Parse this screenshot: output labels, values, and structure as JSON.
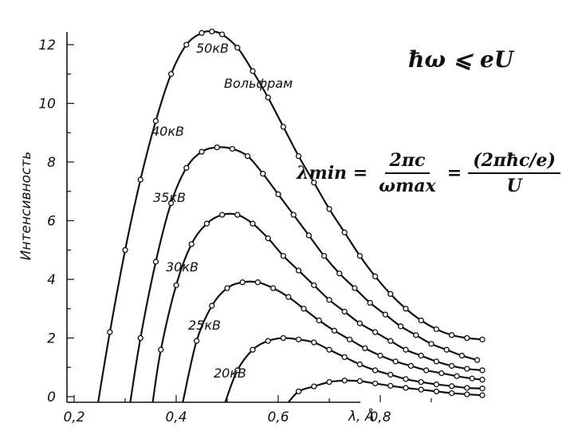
{
  "formulas": {
    "inequality": "ħω ⩽ eU",
    "lambda_min_lhs": "λmin =",
    "frac1_num": "2πc",
    "frac1_den": "ωmax",
    "equals": "=",
    "frac2_num": "(2πħc/e)",
    "frac2_den": "U"
  },
  "chart_data": {
    "type": "line",
    "title": "",
    "xlabel": "λ, Å",
    "ylabel": "Интенсивность",
    "xlim": [
      0.15,
      1.05
    ],
    "ylim": [
      0,
      12.6
    ],
    "x_ticks": [
      "0,2",
      "0,4",
      "0,6",
      "0,8"
    ],
    "x_tick_values": [
      0.2,
      0.4,
      0.6,
      0.8
    ],
    "y_ticks": [
      "0",
      "2",
      "4",
      "6",
      "8",
      "10",
      "12"
    ],
    "y_tick_values": [
      0,
      2,
      4,
      6,
      8,
      10,
      12
    ],
    "annotation": "Вольфрам",
    "grid": false,
    "series": [
      {
        "name": "50кВ",
        "x": [
          0.247,
          0.27,
          0.3,
          0.33,
          0.36,
          0.39,
          0.42,
          0.45,
          0.47,
          0.49,
          0.52,
          0.55,
          0.58,
          0.61,
          0.64,
          0.67,
          0.7,
          0.73,
          0.76,
          0.79,
          0.82,
          0.85,
          0.88,
          0.91,
          0.94,
          0.97,
          1.0
        ],
        "y": [
          0,
          2.2,
          5.0,
          7.4,
          9.4,
          11.0,
          12.0,
          12.4,
          12.45,
          12.35,
          11.9,
          11.1,
          10.2,
          9.2,
          8.2,
          7.3,
          6.4,
          5.6,
          4.8,
          4.1,
          3.5,
          3.0,
          2.6,
          2.3,
          2.1,
          2.0,
          1.95
        ]
      },
      {
        "name": "40кВ",
        "x": [
          0.31,
          0.33,
          0.36,
          0.39,
          0.42,
          0.45,
          0.48,
          0.51,
          0.54,
          0.57,
          0.6,
          0.63,
          0.66,
          0.69,
          0.72,
          0.75,
          0.78,
          0.81,
          0.84,
          0.87,
          0.9,
          0.93,
          0.96,
          0.99
        ],
        "y": [
          0,
          2.0,
          4.6,
          6.6,
          7.8,
          8.35,
          8.5,
          8.45,
          8.2,
          7.6,
          6.9,
          6.2,
          5.5,
          4.8,
          4.2,
          3.7,
          3.2,
          2.8,
          2.4,
          2.1,
          1.8,
          1.6,
          1.4,
          1.25
        ]
      },
      {
        "name": "35кВ",
        "x": [
          0.354,
          0.37,
          0.4,
          0.43,
          0.46,
          0.49,
          0.52,
          0.55,
          0.58,
          0.61,
          0.64,
          0.67,
          0.7,
          0.73,
          0.76,
          0.79,
          0.82,
          0.85,
          0.88,
          0.91,
          0.94,
          0.97,
          1.0
        ],
        "y": [
          0,
          1.6,
          3.8,
          5.2,
          5.9,
          6.2,
          6.2,
          5.9,
          5.4,
          4.8,
          4.3,
          3.8,
          3.3,
          2.9,
          2.5,
          2.2,
          1.9,
          1.6,
          1.4,
          1.2,
          1.05,
          0.95,
          0.9
        ]
      },
      {
        "name": "30кВ",
        "x": [
          0.413,
          0.44,
          0.47,
          0.5,
          0.53,
          0.56,
          0.59,
          0.62,
          0.65,
          0.68,
          0.71,
          0.74,
          0.77,
          0.8,
          0.83,
          0.86,
          0.89,
          0.92,
          0.95,
          0.98,
          1.0
        ],
        "y": [
          0,
          1.9,
          3.1,
          3.7,
          3.9,
          3.9,
          3.7,
          3.4,
          3.0,
          2.6,
          2.25,
          1.95,
          1.65,
          1.4,
          1.2,
          1.05,
          0.9,
          0.8,
          0.7,
          0.62,
          0.58
        ]
      },
      {
        "name": "25кВ",
        "x": [
          0.496,
          0.52,
          0.55,
          0.58,
          0.61,
          0.64,
          0.67,
          0.7,
          0.73,
          0.76,
          0.79,
          0.82,
          0.85,
          0.88,
          0.91,
          0.94,
          0.97,
          1.0
        ],
        "y": [
          0,
          0.9,
          1.6,
          1.9,
          2.0,
          1.95,
          1.85,
          1.6,
          1.35,
          1.1,
          0.9,
          0.75,
          0.6,
          0.5,
          0.42,
          0.36,
          0.3,
          0.28
        ]
      },
      {
        "name": "20кВ",
        "x": [
          0.62,
          0.64,
          0.67,
          0.7,
          0.73,
          0.76,
          0.79,
          0.82,
          0.85,
          0.88,
          0.91,
          0.94,
          0.97,
          1.0
        ],
        "y": [
          0,
          0.18,
          0.35,
          0.5,
          0.55,
          0.53,
          0.45,
          0.37,
          0.3,
          0.24,
          0.18,
          0.12,
          0.08,
          0.05
        ]
      }
    ]
  }
}
